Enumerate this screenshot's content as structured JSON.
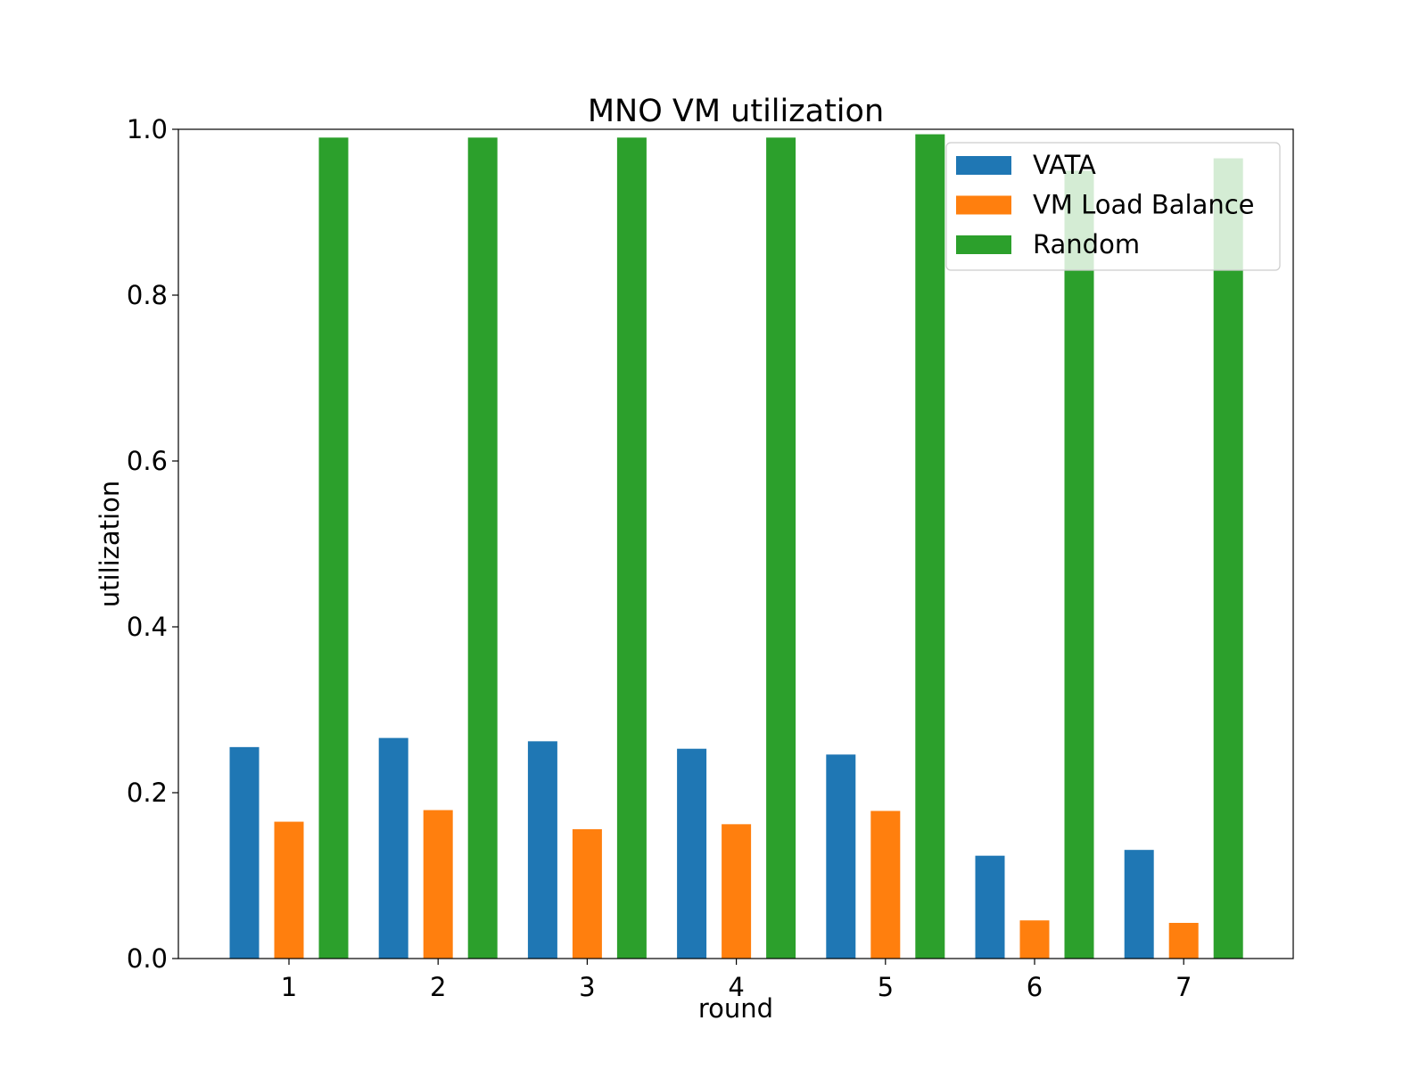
{
  "chart_data": {
    "type": "bar",
    "title": "MNO VM utilization",
    "xlabel": "round",
    "ylabel": "utilization",
    "categories": [
      "1",
      "2",
      "3",
      "4",
      "5",
      "6",
      "7"
    ],
    "ylim": [
      0,
      1.0
    ],
    "yticks": [
      "0.0",
      "0.2",
      "0.4",
      "0.6",
      "0.8",
      "1.0"
    ],
    "grid": false,
    "legend_position": "top-right",
    "series": [
      {
        "name": "VATA",
        "color": "#1f77b4",
        "values": [
          0.255,
          0.266,
          0.262,
          0.253,
          0.246,
          0.124,
          0.131
        ]
      },
      {
        "name": "VM Load Balance",
        "color": "#ff7f0e",
        "values": [
          0.165,
          0.179,
          0.156,
          0.162,
          0.178,
          0.046,
          0.043
        ]
      },
      {
        "name": "Random",
        "color": "#2ca02c",
        "values": [
          0.99,
          0.99,
          0.99,
          0.99,
          0.994,
          0.95,
          0.965
        ]
      }
    ]
  }
}
